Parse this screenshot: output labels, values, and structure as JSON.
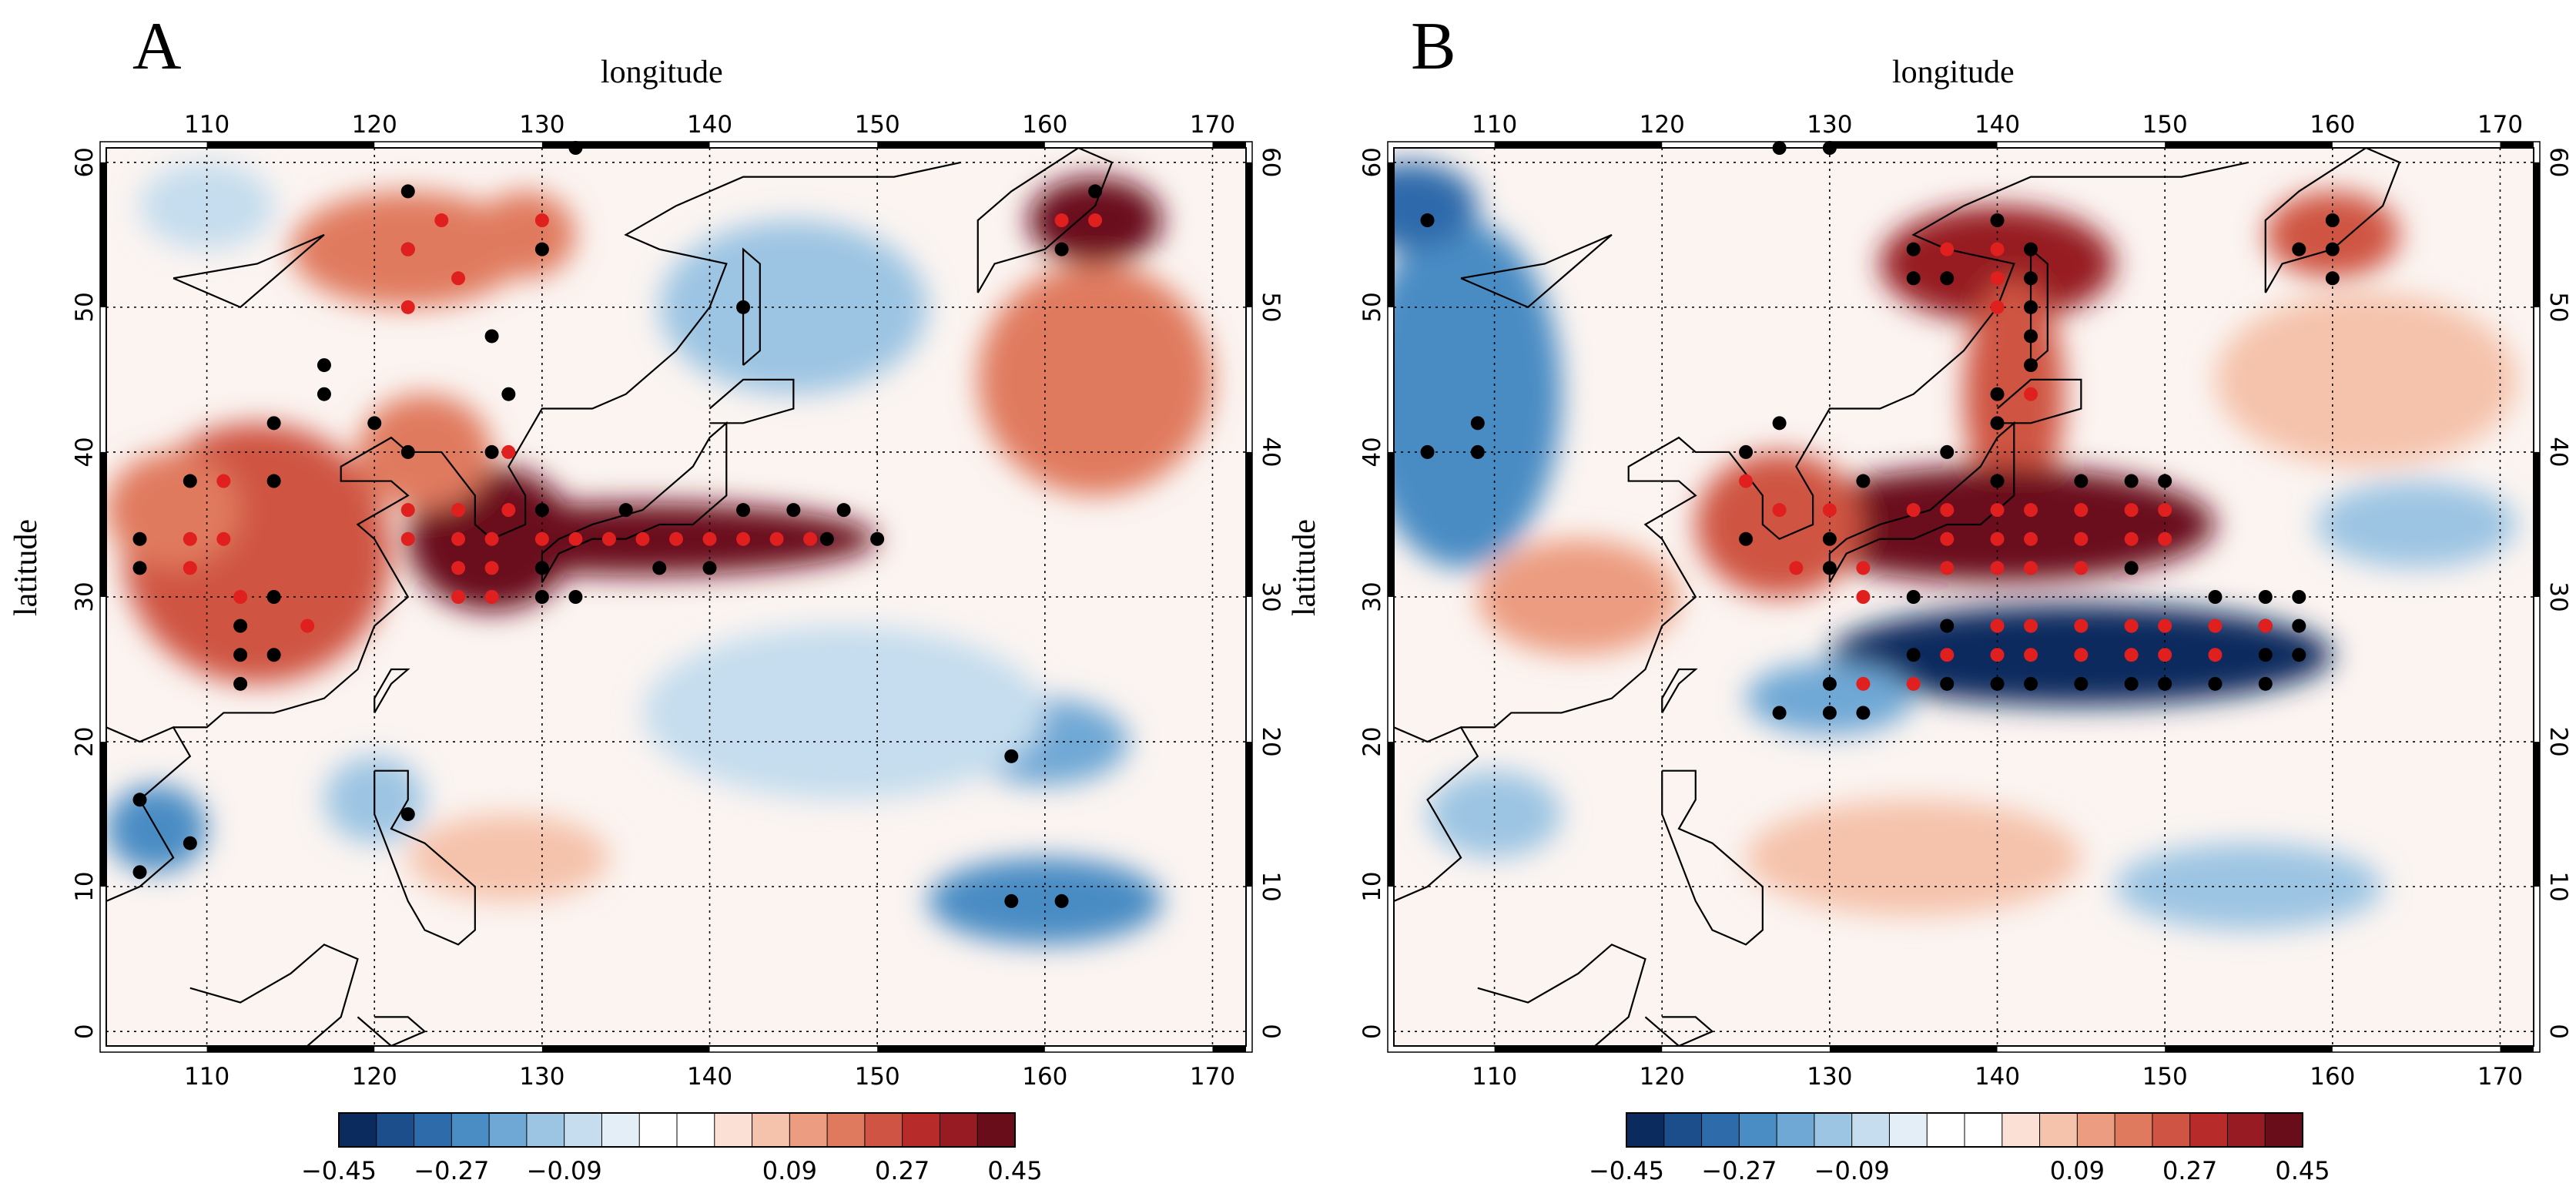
{
  "panels": [
    {
      "id": "A",
      "letter": "A",
      "xlabel": "longitude",
      "ylabel": "latitude",
      "lon_ticks": [
        "110",
        "120",
        "130",
        "140",
        "150",
        "160",
        "170"
      ],
      "lat_ticks": [
        "0",
        "10",
        "20",
        "30",
        "40",
        "50",
        "60"
      ],
      "warm_blobs": [
        {
          "lon": 113,
          "lat": 33,
          "rx": 8,
          "ry": 9,
          "v": 0.3
        },
        {
          "lon": 108,
          "lat": 36,
          "rx": 4,
          "ry": 4,
          "v": 0.25
        },
        {
          "lon": 127,
          "lat": 34,
          "rx": 5,
          "ry": 5,
          "v": 0.45
        },
        {
          "lon": 136,
          "lat": 34,
          "rx": 14,
          "ry": 2.5,
          "v": 0.4
        },
        {
          "lon": 122,
          "lat": 54,
          "rx": 7,
          "ry": 4,
          "v": 0.2
        },
        {
          "lon": 129,
          "lat": 55,
          "rx": 3,
          "ry": 3,
          "v": 0.22
        },
        {
          "lon": 163,
          "lat": 56,
          "rx": 4,
          "ry": 3,
          "v": 0.4
        },
        {
          "lon": 163,
          "lat": 45,
          "rx": 7,
          "ry": 8,
          "v": 0.2
        },
        {
          "lon": 128,
          "lat": 12,
          "rx": 6,
          "ry": 3,
          "v": 0.12
        },
        {
          "lon": 123,
          "lat": 40,
          "rx": 4,
          "ry": 4,
          "v": 0.2
        }
      ],
      "cold_blobs": [
        {
          "lon": 145,
          "lat": 50,
          "rx": 8,
          "ry": 6,
          "v": -0.2
        },
        {
          "lon": 160,
          "lat": 20,
          "rx": 5,
          "ry": 3,
          "v": -0.25
        },
        {
          "lon": 160,
          "lat": 9,
          "rx": 7,
          "ry": 3,
          "v": -0.3
        },
        {
          "lon": 107,
          "lat": 14,
          "rx": 3,
          "ry": 3,
          "v": -0.3
        },
        {
          "lon": 110,
          "lat": 57,
          "rx": 4,
          "ry": 3,
          "v": -0.15
        },
        {
          "lon": 148,
          "lat": 22,
          "rx": 12,
          "ry": 6,
          "v": -0.12
        },
        {
          "lon": 120,
          "lat": 16,
          "rx": 3,
          "ry": 3,
          "v": -0.2
        }
      ],
      "black_dots": [
        [
          122,
          58
        ],
        [
          122,
          54
        ],
        [
          130,
          54
        ],
        [
          127,
          48
        ],
        [
          128,
          44
        ],
        [
          122,
          40
        ],
        [
          142,
          50
        ],
        [
          117,
          46
        ],
        [
          117,
          44
        ],
        [
          114,
          42
        ],
        [
          120,
          42
        ],
        [
          109,
          38
        ],
        [
          114,
          38
        ],
        [
          106,
          34
        ],
        [
          106,
          32
        ],
        [
          112,
          28
        ],
        [
          112,
          26
        ],
        [
          112,
          24
        ],
        [
          114,
          30
        ],
        [
          114,
          26
        ],
        [
          127,
          40
        ],
        [
          130,
          36
        ],
        [
          130,
          32
        ],
        [
          130,
          30
        ],
        [
          132,
          30
        ],
        [
          135,
          36
        ],
        [
          137,
          32
        ],
        [
          140,
          32
        ],
        [
          142,
          36
        ],
        [
          145,
          36
        ],
        [
          147,
          34
        ],
        [
          148,
          36
        ],
        [
          150,
          34
        ],
        [
          106,
          16
        ],
        [
          106,
          11
        ],
        [
          109,
          13
        ],
        [
          122,
          15
        ],
        [
          158,
          19
        ],
        [
          158,
          9
        ],
        [
          161,
          9
        ],
        [
          132,
          61
        ],
        [
          163,
          58
        ],
        [
          161,
          54
        ]
      ],
      "red_dots": [
        [
          122,
          54
        ],
        [
          124,
          56
        ],
        [
          125,
          52
        ],
        [
          122,
          50
        ],
        [
          130,
          56
        ],
        [
          111,
          38
        ],
        [
          109,
          34
        ],
        [
          109,
          32
        ],
        [
          111,
          34
        ],
        [
          112,
          30
        ],
        [
          116,
          28
        ],
        [
          122,
          36
        ],
        [
          122,
          34
        ],
        [
          125,
          36
        ],
        [
          125,
          34
        ],
        [
          125,
          32
        ],
        [
          125,
          30
        ],
        [
          127,
          34
        ],
        [
          127,
          32
        ],
        [
          127,
          30
        ],
        [
          128,
          40
        ],
        [
          128,
          36
        ],
        [
          130,
          34
        ],
        [
          132,
          34
        ],
        [
          134,
          34
        ],
        [
          136,
          34
        ],
        [
          138,
          34
        ],
        [
          140,
          34
        ],
        [
          142,
          34
        ],
        [
          144,
          34
        ],
        [
          146,
          34
        ],
        [
          161,
          56
        ],
        [
          163,
          56
        ]
      ]
    },
    {
      "id": "B",
      "letter": "B",
      "xlabel": "longitude",
      "ylabel": "latitude",
      "lon_ticks": [
        "110",
        "120",
        "130",
        "140",
        "150",
        "160",
        "170"
      ],
      "lat_ticks": [
        "0",
        "10",
        "20",
        "30",
        "40",
        "50",
        "60"
      ],
      "warm_blobs": [
        {
          "lon": 140,
          "lat": 53,
          "rx": 7,
          "ry": 4,
          "v": 0.35
        },
        {
          "lon": 141,
          "lat": 44,
          "rx": 3,
          "ry": 8,
          "v": 0.3
        },
        {
          "lon": 140,
          "lat": 35,
          "rx": 13,
          "ry": 4,
          "v": 0.42
        },
        {
          "lon": 127,
          "lat": 35,
          "rx": 5,
          "ry": 5,
          "v": 0.3
        },
        {
          "lon": 160,
          "lat": 55,
          "rx": 4,
          "ry": 3,
          "v": 0.3
        },
        {
          "lon": 115,
          "lat": 30,
          "rx": 6,
          "ry": 4,
          "v": 0.15
        },
        {
          "lon": 135,
          "lat": 12,
          "rx": 10,
          "ry": 4,
          "v": 0.12
        },
        {
          "lon": 162,
          "lat": 45,
          "rx": 9,
          "ry": 6,
          "v": 0.12
        }
      ],
      "cold_blobs": [
        {
          "lon": 145,
          "lat": 26,
          "rx": 15,
          "ry": 3.5,
          "v": -0.45
        },
        {
          "lon": 130,
          "lat": 23,
          "rx": 5,
          "ry": 2.5,
          "v": -0.25
        },
        {
          "lon": 108,
          "lat": 44,
          "rx": 6,
          "ry": 12,
          "v": -0.3
        },
        {
          "lon": 105,
          "lat": 57,
          "rx": 4,
          "ry": 3,
          "v": -0.35
        },
        {
          "lon": 165,
          "lat": 35,
          "rx": 6,
          "ry": 3,
          "v": -0.2
        },
        {
          "lon": 155,
          "lat": 10,
          "rx": 8,
          "ry": 3,
          "v": -0.2
        },
        {
          "lon": 110,
          "lat": 15,
          "rx": 4,
          "ry": 3,
          "v": -0.2
        }
      ],
      "black_dots": [
        [
          127,
          61
        ],
        [
          130,
          61
        ],
        [
          106,
          56
        ],
        [
          135,
          54
        ],
        [
          135,
          52
        ],
        [
          137,
          52
        ],
        [
          140,
          56
        ],
        [
          142,
          54
        ],
        [
          142,
          52
        ],
        [
          142,
          50
        ],
        [
          142,
          48
        ],
        [
          142,
          46
        ],
        [
          140,
          44
        ],
        [
          109,
          42
        ],
        [
          106,
          40
        ],
        [
          109,
          40
        ],
        [
          127,
          42
        ],
        [
          125,
          40
        ],
        [
          125,
          34
        ],
        [
          130,
          34
        ],
        [
          130,
          32
        ],
        [
          132,
          38
        ],
        [
          137,
          40
        ],
        [
          140,
          42
        ],
        [
          140,
          38
        ],
        [
          145,
          38
        ],
        [
          148,
          38
        ],
        [
          150,
          38
        ],
        [
          135,
          30
        ],
        [
          148,
          32
        ],
        [
          127,
          22
        ],
        [
          130,
          22
        ],
        [
          130,
          24
        ],
        [
          132,
          22
        ],
        [
          135,
          26
        ],
        [
          137,
          28
        ],
        [
          137,
          24
        ],
        [
          140,
          24
        ],
        [
          142,
          24
        ],
        [
          145,
          24
        ],
        [
          148,
          24
        ],
        [
          150,
          24
        ],
        [
          153,
          24
        ],
        [
          153,
          30
        ],
        [
          156,
          30
        ],
        [
          156,
          28
        ],
        [
          156,
          26
        ],
        [
          156,
          24
        ],
        [
          158,
          30
        ],
        [
          158,
          28
        ],
        [
          158,
          26
        ],
        [
          158,
          54
        ],
        [
          160,
          52
        ],
        [
          160,
          56
        ],
        [
          160,
          54
        ]
      ],
      "red_dots": [
        [
          137,
          54
        ],
        [
          140,
          54
        ],
        [
          140,
          52
        ],
        [
          140,
          50
        ],
        [
          142,
          44
        ],
        [
          125,
          38
        ],
        [
          127,
          36
        ],
        [
          128,
          32
        ],
        [
          130,
          36
        ],
        [
          132,
          32
        ],
        [
          132,
          30
        ],
        [
          135,
          36
        ],
        [
          137,
          36
        ],
        [
          137,
          34
        ],
        [
          137,
          32
        ],
        [
          140,
          36
        ],
        [
          140,
          34
        ],
        [
          140,
          32
        ],
        [
          142,
          36
        ],
        [
          142,
          34
        ],
        [
          142,
          32
        ],
        [
          145,
          36
        ],
        [
          145,
          34
        ],
        [
          145,
          32
        ],
        [
          148,
          36
        ],
        [
          148,
          34
        ],
        [
          150,
          36
        ],
        [
          150,
          34
        ],
        [
          132,
          24
        ],
        [
          135,
          24
        ],
        [
          137,
          26
        ],
        [
          140,
          28
        ],
        [
          140,
          26
        ],
        [
          142,
          28
        ],
        [
          142,
          26
        ],
        [
          145,
          28
        ],
        [
          145,
          26
        ],
        [
          148,
          28
        ],
        [
          148,
          26
        ],
        [
          150,
          28
        ],
        [
          150,
          26
        ],
        [
          153,
          28
        ],
        [
          153,
          26
        ],
        [
          156,
          28
        ]
      ]
    }
  ],
  "colorbar": {
    "tick_labels": [
      "−0.45",
      "−0.27",
      "−0.09",
      "0.09",
      "0.27",
      "0.45"
    ],
    "colors": [
      "#0b2b5e",
      "#1c4e8c",
      "#2e6bab",
      "#4a8cc4",
      "#6fa8d5",
      "#9cc5e3",
      "#c5ddee",
      "#e3eef6",
      "#ffffff",
      "#ffffff",
      "#fbe1d5",
      "#f5c2ab",
      "#ec9c80",
      "#e07a5f",
      "#cf5443",
      "#b72b2b",
      "#961b23",
      "#6a0d1a"
    ]
  },
  "legend": {
    "coast_color": "#000000"
  }
}
